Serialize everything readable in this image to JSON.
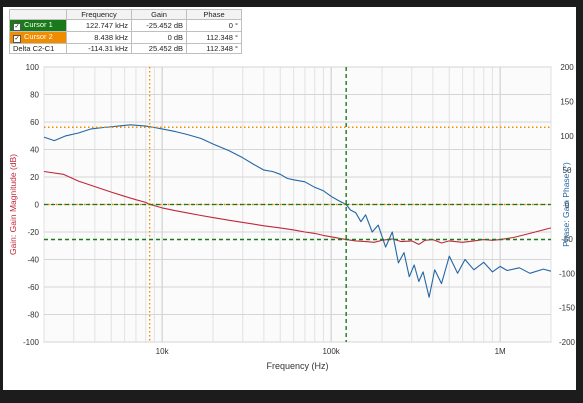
{
  "cursor_table": {
    "headers": [
      "",
      "Frequency",
      "Gain",
      "Phase"
    ],
    "rows": [
      {
        "name": "Cursor 1",
        "frequency": "122.747 kHz",
        "gain": "-25.452 dB",
        "phase": "0 °",
        "color": "#1a7a1a"
      },
      {
        "name": "Cursor 2",
        "frequency": "8.438 kHz",
        "gain": "0 dB",
        "phase": "112.348 °",
        "color": "#f08c00"
      },
      {
        "name": "Delta C2-C1",
        "frequency": "-114.31 kHz",
        "gain": "25.452 dB",
        "phase": "112.348 °",
        "color": ""
      }
    ]
  },
  "chart_data": {
    "type": "line",
    "xlabel": "Frequency (Hz)",
    "ylabel_left": "Gain: Gain Magnitude (dB)",
    "ylabel_right": "Phase: Gain Phase (°)",
    "x_scale": "log",
    "xlim": [
      2000,
      2000000
    ],
    "ylim_left": [
      -100,
      100
    ],
    "ylim_right": [
      -200,
      200
    ],
    "y_ticks_left": [
      100,
      80,
      60,
      40,
      20,
      0,
      -20,
      -40,
      -60,
      -80,
      -100
    ],
    "y_ticks_right": [
      200,
      150,
      100,
      50,
      0,
      -50,
      -100,
      -150,
      -200
    ],
    "x_tick_labels": [
      {
        "x": 10000,
        "label": "10k"
      },
      {
        "x": 100000,
        "label": "100k"
      },
      {
        "x": 1000000,
        "label": "1M"
      }
    ],
    "grid": true,
    "colors": {
      "gain": "#c0283a",
      "phase": "#2466a6",
      "cursor1": "#1a7a1a",
      "cursor2": "#f08c00"
    },
    "series": [
      {
        "axis": "left",
        "x": [
          2000,
          2600,
          3200,
          4000,
          5000,
          6000,
          7000,
          8000,
          8438,
          9000,
          10000,
          12000,
          14000,
          17000,
          20000,
          25000,
          30000,
          40000,
          50000,
          60000,
          70000,
          80000,
          90000,
          100000,
          122747,
          140000,
          160000,
          180000,
          200000,
          230000,
          260000,
          300000,
          330000,
          360000,
          400000,
          450000,
          500000,
          600000,
          700000,
          800000,
          900000,
          1000000,
          1200000,
          1500000,
          2000000
        ],
        "values": [
          24,
          22,
          17,
          13,
          9,
          6,
          3.5,
          1.5,
          0,
          -0.8,
          -2.5,
          -4.5,
          -6,
          -8,
          -9.5,
          -11.5,
          -13,
          -15.5,
          -17,
          -18.5,
          -20,
          -21,
          -22.5,
          -23.5,
          -25.5,
          -26.5,
          -27,
          -27.5,
          -26,
          -25,
          -27,
          -26.5,
          -29,
          -26,
          -25.5,
          -28,
          -26.5,
          -27.5,
          -26.5,
          -25.5,
          -26,
          -25.5,
          -24,
          -21,
          -17
        ]
      },
      {
        "axis": "right",
        "x": [
          2000,
          2300,
          2700,
          3200,
          3800,
          4500,
          5500,
          6500,
          8000,
          9000,
          10000,
          12000,
          14000,
          17000,
          20000,
          25000,
          30000,
          35000,
          40000,
          45000,
          50000,
          55000,
          60000,
          70000,
          80000,
          90000,
          100000,
          110000,
          122747,
          130000,
          140000,
          150000,
          160000,
          175000,
          190000,
          210000,
          230000,
          250000,
          270000,
          290000,
          310000,
          330000,
          350000,
          380000,
          410000,
          450000,
          500000,
          560000,
          620000,
          700000,
          800000,
          900000,
          1000000,
          1100000,
          1300000,
          1500000,
          1800000,
          2000000
        ],
        "values": [
          98,
          93,
          100,
          104,
          110,
          112,
          114,
          116,
          114,
          112,
          110,
          106,
          102,
          96,
          88,
          78,
          68,
          58,
          50,
          48,
          44,
          38,
          36,
          33,
          25,
          20,
          12,
          6,
          0,
          -8,
          -12,
          -25,
          -15,
          -40,
          -30,
          -62,
          -40,
          -85,
          -70,
          -105,
          -88,
          -112,
          -98,
          -135,
          -95,
          -115,
          -75,
          -100,
          -80,
          -95,
          -84,
          -98,
          -90,
          -96,
          -92,
          -100,
          -94,
          -97
        ]
      }
    ],
    "cursors": [
      {
        "name": "Cursor 1",
        "frequency": 122747,
        "gain": -25.452,
        "phase": 0
      },
      {
        "name": "Cursor 2",
        "frequency": 8438,
        "gain": 0,
        "phase": 112.348
      }
    ]
  }
}
